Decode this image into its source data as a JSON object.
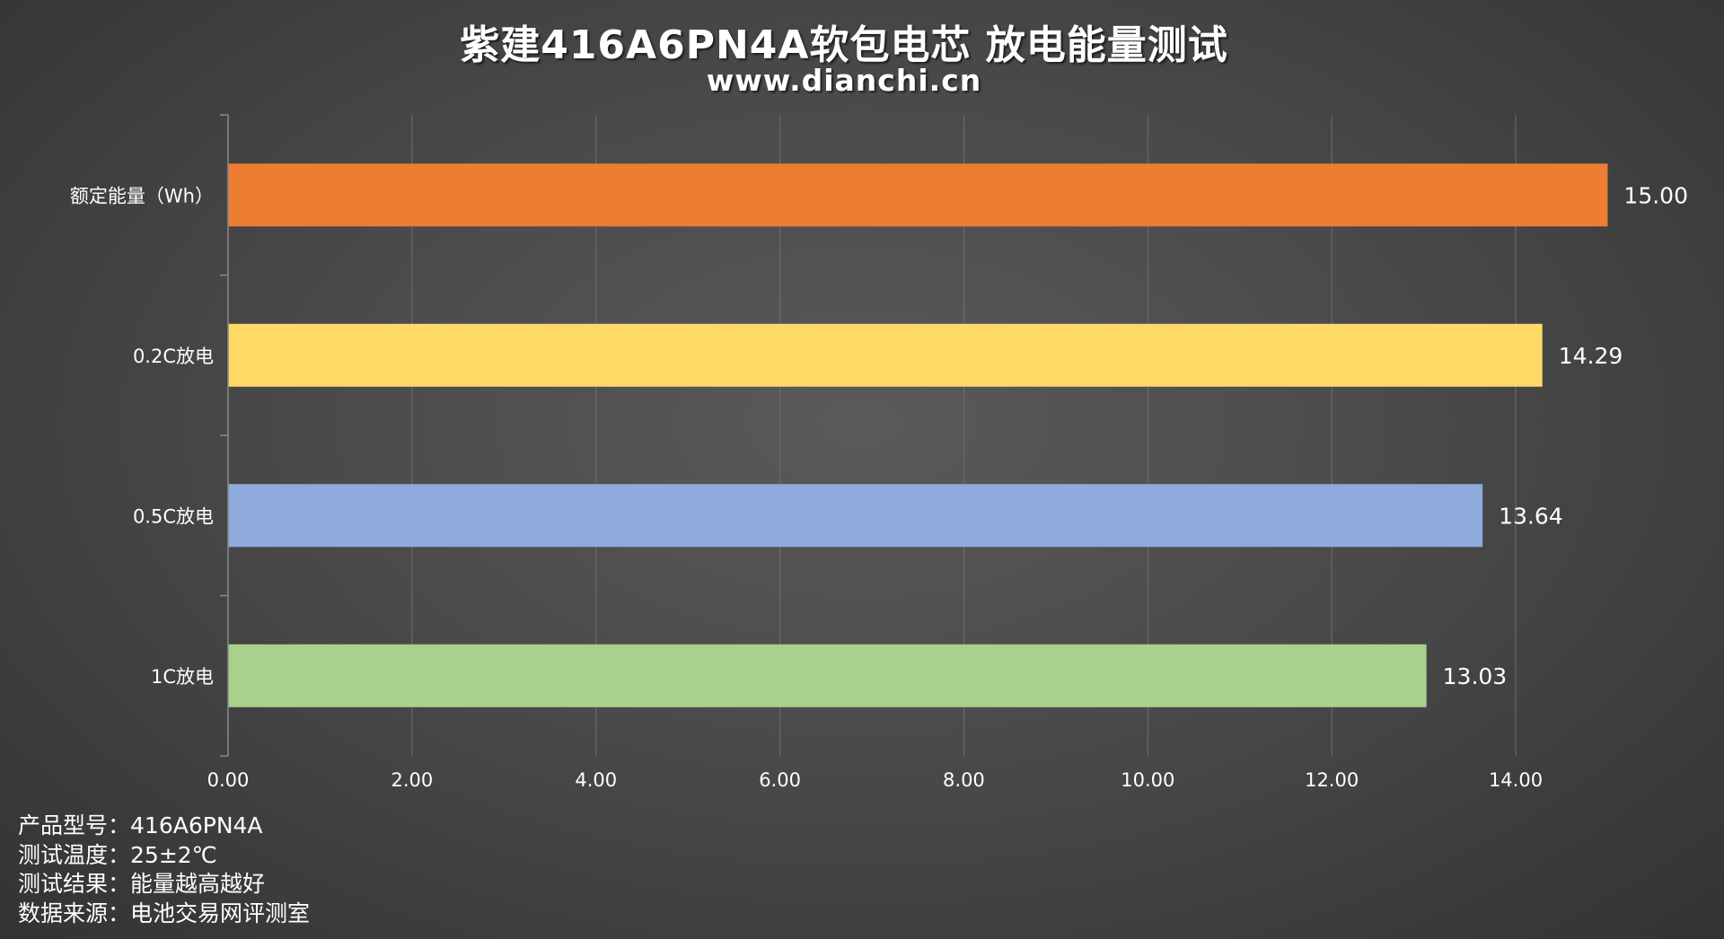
{
  "title": "紫建416A6PN4A软包电芯 放电能量测试",
  "subtitle": "www.dianchi.cn",
  "notes": [
    {
      "label": "产品型号：",
      "value": "416A6PN4A"
    },
    {
      "label": "测试温度：",
      "value": "25±2℃"
    },
    {
      "label": "测试结果：",
      "value": "能量越高越好"
    },
    {
      "label": "数据来源：",
      "value": "电池交易网评测室"
    }
  ],
  "chart_data": {
    "type": "bar",
    "orientation": "horizontal",
    "categories": [
      "额定能量（Wh）",
      "0.2C放电",
      "0.5C放电",
      "1C放电"
    ],
    "values": [
      15.0,
      14.29,
      13.64,
      13.03
    ],
    "value_labels": [
      "15.00",
      "14.29",
      "13.64",
      "13.03"
    ],
    "colors": [
      "#ED7D31",
      "#FFD966",
      "#8FAADC",
      "#A9D18E"
    ],
    "xlim": [
      0,
      14
    ],
    "xticks": [
      0,
      2,
      4,
      6,
      8,
      10,
      12,
      14
    ],
    "xtick_labels": [
      "0.00",
      "2.00",
      "4.00",
      "6.00",
      "8.00",
      "10.00",
      "12.00",
      "14.00"
    ],
    "grid": true,
    "legend": "none"
  }
}
